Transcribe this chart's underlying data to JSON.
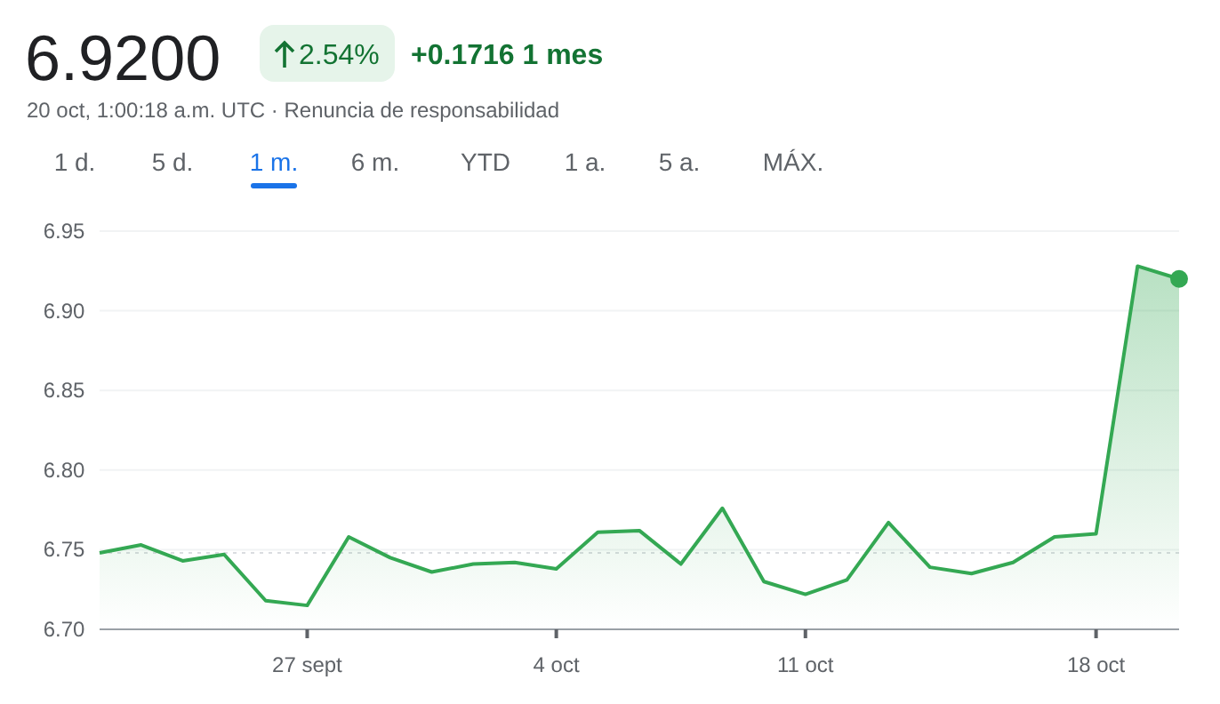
{
  "chart_data": {
    "type": "area",
    "title": "6.9200",
    "annotations": [
      "2.54%",
      "+0.1716 1 mes",
      "20 oct, 1:00:18 a.m. UTC · Renuncia de responsabilidad",
      "1 d.",
      "5 d.",
      "1 m.",
      "6 m.",
      "YTD",
      "1 a.",
      "5 a.",
      "MÁX."
    ],
    "categories": [
      null,
      null,
      null,
      null,
      null,
      "27 sept",
      null,
      null,
      null,
      null,
      null,
      "4 oct",
      null,
      null,
      null,
      null,
      null,
      "11 oct",
      null,
      null,
      null,
      null,
      null,
      null,
      "18 oct",
      null,
      null
    ],
    "values": [
      6.748,
      6.753,
      6.743,
      6.747,
      6.718,
      6.715,
      6.758,
      6.745,
      6.736,
      6.741,
      6.742,
      6.738,
      6.761,
      6.762,
      6.741,
      6.776,
      6.73,
      6.722,
      6.731,
      6.767,
      6.739,
      6.735,
      6.742,
      6.758,
      6.76,
      6.928,
      6.92
    ],
    "color": "#34a853",
    "ylim": [
      6.7,
      6.95
    ],
    "yticks": [
      {
        "value": 6.7,
        "label": "6.70"
      },
      6.75,
      {
        "value": 6.8,
        "label": "6.80"
      },
      6.85,
      {
        "value": 6.9,
        "label": "6.90"
      },
      6.95
    ],
    "ref_lines": [
      {
        "axis": "y",
        "value": 6.748,
        "line_style": "dotted",
        "color": "#dadce0"
      }
    ],
    "grid": "y"
  }
}
